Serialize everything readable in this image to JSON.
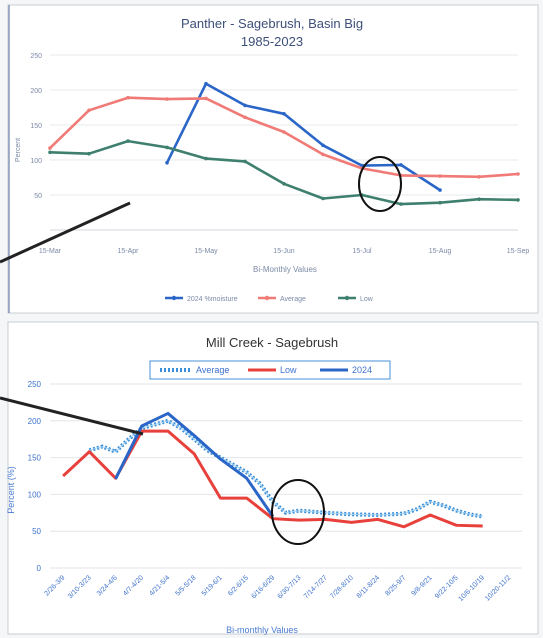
{
  "chart_data": [
    {
      "type": "line",
      "title": "Panther - Sagebrush, Basin Big",
      "subtitle": "1985-2023",
      "xlabel": "Bi-Monthly Values",
      "ylabel": "Percent",
      "ylim": [
        0,
        250
      ],
      "yticks": [
        "250",
        "200",
        "150",
        "100",
        "50"
      ],
      "xticks": [
        "15-Mar",
        "15-Apr",
        "15-May",
        "15-Jun",
        "15-Jul",
        "15-Aug",
        "15-Sep"
      ],
      "legend_position": "bottom",
      "series": [
        {
          "name": "2024 %moisture",
          "color": "#2a66c8",
          "x": [
            1.5,
            2,
            2.5,
            3,
            3.5,
            4,
            4.5,
            5
          ],
          "values": [
            96,
            209,
            178,
            166,
            121,
            92,
            93,
            57
          ]
        },
        {
          "name": "Average",
          "color": "#f07a76",
          "x": [
            0,
            0.5,
            1,
            1.5,
            2,
            2.5,
            3,
            3.5,
            4,
            4.5,
            5,
            5.5,
            6
          ],
          "values": [
            117,
            171,
            189,
            187,
            188,
            161,
            140,
            108,
            88,
            78,
            77,
            76,
            80
          ]
        },
        {
          "name": "Low",
          "color": "#3e7f6e",
          "x": [
            0,
            0.5,
            1,
            1.5,
            2,
            2.5,
            3,
            3.5,
            4,
            4.5,
            5,
            5.5,
            6
          ],
          "values": [
            111,
            109,
            127,
            118,
            102,
            98,
            66,
            45,
            50,
            37,
            39,
            44,
            43
          ]
        }
      ]
    },
    {
      "type": "line",
      "title": "Mill Creek - Sagebrush",
      "xlabel": "Bi-monthly Values",
      "ylabel": "Percent (%)",
      "ylim": [
        0,
        250
      ],
      "yticks": [
        "250",
        "200",
        "150",
        "100",
        "50",
        "0"
      ],
      "categories": [
        "2/26-3/9",
        "3/10-3/23",
        "3/24-4/6",
        "4/7-4/20",
        "4/21-5/4",
        "5/5-5/18",
        "5/19-6/1",
        "6/2-6/15",
        "6/16-6/29",
        "6/30-7/13",
        "7/14-7/27",
        "7/28-8/10",
        "8/11-8/24",
        "8/25-9/7",
        "9/8-9/21",
        "9/22-10/5",
        "10/6-10/19",
        "10/20-11/2"
      ],
      "legend_position": "top",
      "series": [
        {
          "name": "Average",
          "color": "#3a8fd8",
          "style": "dotted",
          "x": [
            2,
            2.5,
            3,
            3.5,
            4,
            4.5,
            5,
            5.5,
            6,
            6.5,
            7,
            7.5,
            8,
            8.5,
            9,
            9.5,
            10,
            11,
            12,
            13,
            14,
            14.5,
            15,
            15.5,
            16,
            16.5,
            17
          ],
          "values": [
            160,
            165,
            158,
            175,
            190,
            195,
            200,
            190,
            175,
            160,
            150,
            140,
            130,
            115,
            90,
            75,
            78,
            75,
            73,
            72,
            74,
            80,
            90,
            85,
            78,
            73,
            70
          ]
        },
        {
          "name": "Low",
          "color": "#e8413c",
          "x": [
            1,
            2,
            3,
            4,
            5,
            6,
            7,
            8,
            9,
            10,
            11,
            12,
            13,
            14,
            15,
            16,
            17
          ],
          "values": [
            125,
            158,
            122,
            186,
            186,
            155,
            95,
            95,
            67,
            65,
            66,
            62,
            66,
            56,
            72,
            58,
            57
          ]
        },
        {
          "name": "2024",
          "color": "#2a66c8",
          "x": [
            3,
            4,
            5,
            6,
            7,
            8,
            9
          ],
          "values": [
            121,
            193,
            210,
            180,
            148,
            122,
            70
          ]
        }
      ]
    }
  ]
}
